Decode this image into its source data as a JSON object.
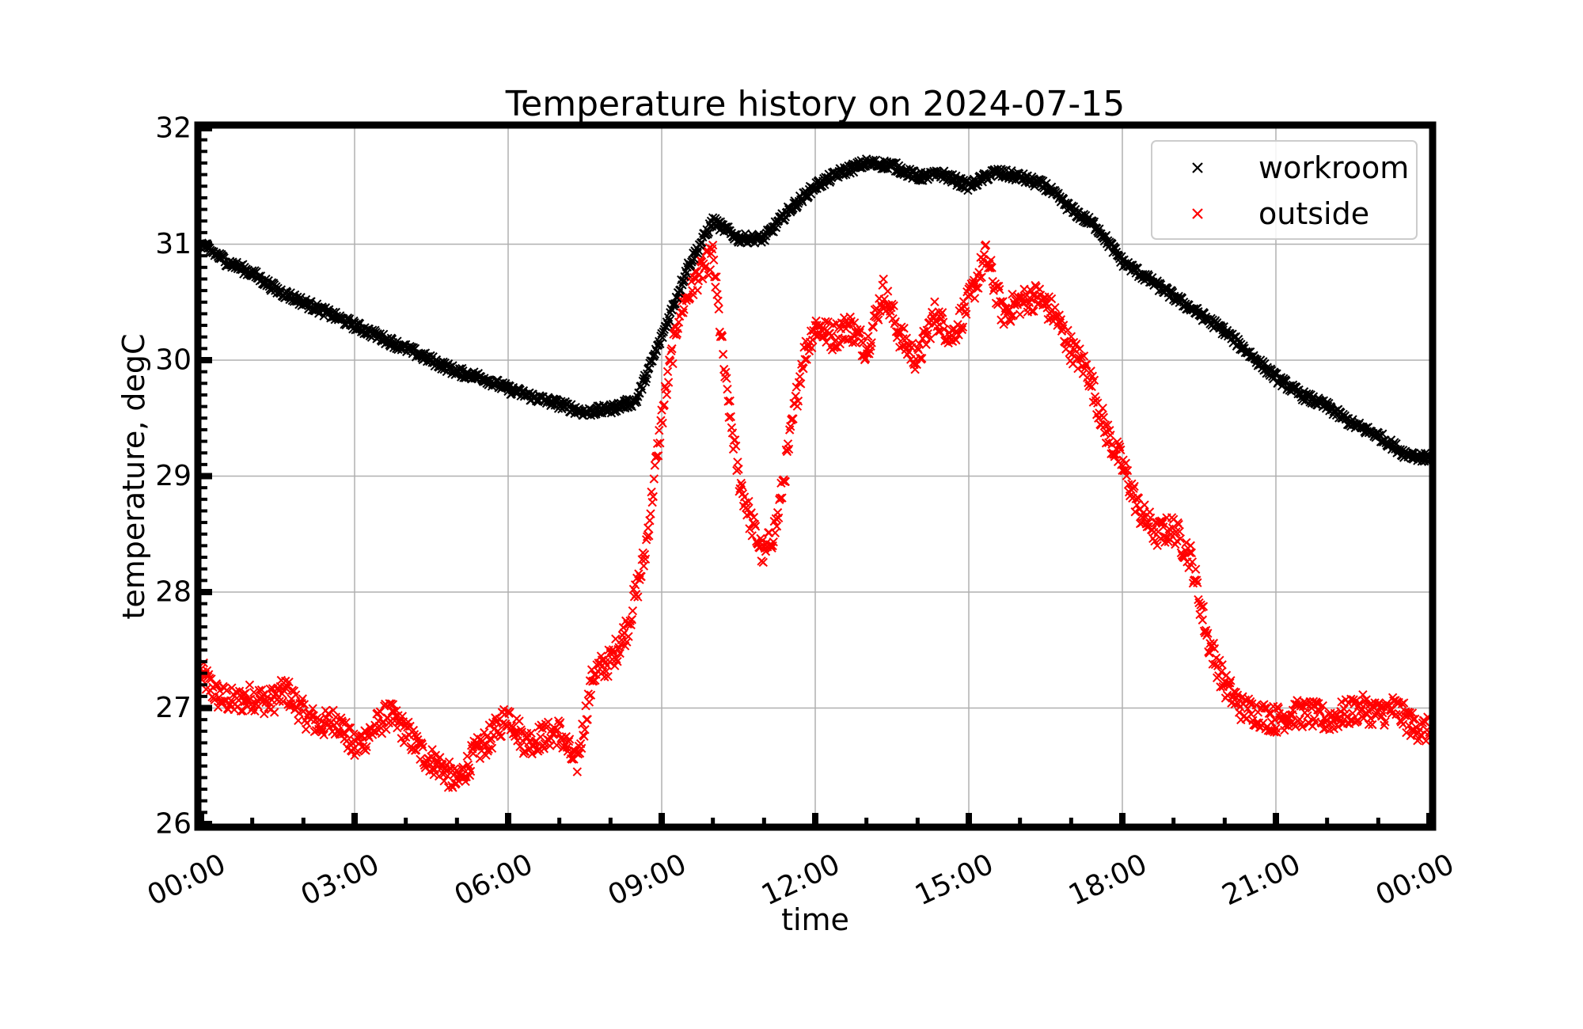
{
  "chart_data": {
    "type": "scatter",
    "title": "Temperature history on 2024-07-15",
    "xlabel": "time",
    "ylabel": "temperature, degC",
    "xlim": [
      "00:00",
      "24:00"
    ],
    "ylim": [
      26,
      32
    ],
    "x_tick_labels": [
      "00:00",
      "03:00",
      "06:00",
      "09:00",
      "12:00",
      "15:00",
      "18:00",
      "21:00",
      "00:00"
    ],
    "y_tick_labels": [
      "26",
      "27",
      "28",
      "29",
      "30",
      "31",
      "32"
    ],
    "grid": true,
    "legend_position": "top-right",
    "marker": "x",
    "series": [
      {
        "name": "workroom",
        "color": "#000000",
        "x": [
          "00:00",
          "00:30",
          "01:00",
          "01:30",
          "02:00",
          "02:30",
          "03:00",
          "03:30",
          "04:00",
          "04:30",
          "05:00",
          "05:30",
          "06:00",
          "06:30",
          "07:00",
          "07:30",
          "08:00",
          "08:30",
          "09:00",
          "09:30",
          "10:00",
          "10:30",
          "11:00",
          "11:30",
          "12:00",
          "12:30",
          "13:00",
          "13:30",
          "14:00",
          "14:30",
          "15:00",
          "15:30",
          "16:00",
          "16:30",
          "17:00",
          "17:30",
          "18:00",
          "18:30",
          "19:00",
          "19:30",
          "20:00",
          "20:30",
          "21:00",
          "21:30",
          "22:00",
          "22:30",
          "23:00",
          "23:30",
          "24:00"
        ],
        "y": [
          31.0,
          30.85,
          30.75,
          30.6,
          30.5,
          30.4,
          30.3,
          30.2,
          30.1,
          30.0,
          29.9,
          29.85,
          29.75,
          29.68,
          29.62,
          29.55,
          29.58,
          29.65,
          30.2,
          30.8,
          31.2,
          31.05,
          31.05,
          31.3,
          31.5,
          31.62,
          31.7,
          31.68,
          31.58,
          31.6,
          31.5,
          31.62,
          31.58,
          31.5,
          31.3,
          31.15,
          30.85,
          30.7,
          30.55,
          30.4,
          30.25,
          30.05,
          29.85,
          29.7,
          29.6,
          29.45,
          29.35,
          29.2,
          29.15
        ]
      },
      {
        "name": "outside",
        "color": "#ff0000",
        "x": [
          "00:00",
          "00:20",
          "00:40",
          "01:00",
          "01:20",
          "01:40",
          "02:00",
          "02:20",
          "02:40",
          "03:00",
          "03:20",
          "03:40",
          "04:00",
          "04:20",
          "04:40",
          "05:00",
          "05:20",
          "05:40",
          "06:00",
          "06:20",
          "06:40",
          "07:00",
          "07:20",
          "07:40",
          "08:00",
          "08:20",
          "08:40",
          "09:00",
          "09:20",
          "09:40",
          "10:00",
          "10:15",
          "10:30",
          "10:45",
          "11:00",
          "11:15",
          "11:30",
          "11:45",
          "12:00",
          "12:20",
          "12:40",
          "13:00",
          "13:20",
          "13:40",
          "14:00",
          "14:20",
          "14:40",
          "15:00",
          "15:20",
          "15:40",
          "16:00",
          "16:20",
          "16:40",
          "17:00",
          "17:20",
          "17:40",
          "18:00",
          "18:20",
          "18:40",
          "19:00",
          "19:20",
          "19:40",
          "20:00",
          "20:20",
          "20:40",
          "21:00",
          "21:20",
          "21:40",
          "22:00",
          "22:20",
          "22:40",
          "23:00",
          "23:20",
          "23:40",
          "24:00"
        ],
        "y": [
          27.3,
          27.1,
          27.05,
          27.1,
          27.05,
          27.15,
          26.95,
          26.85,
          26.9,
          26.65,
          26.8,
          26.95,
          26.8,
          26.6,
          26.5,
          26.35,
          26.6,
          26.75,
          26.95,
          26.7,
          26.75,
          26.8,
          26.5,
          27.3,
          27.4,
          27.7,
          28.3,
          29.5,
          30.4,
          30.7,
          30.9,
          29.8,
          29.0,
          28.6,
          28.3,
          28.6,
          29.3,
          30.0,
          30.3,
          30.2,
          30.3,
          30.1,
          30.6,
          30.2,
          30.0,
          30.4,
          30.2,
          30.5,
          30.9,
          30.4,
          30.5,
          30.55,
          30.4,
          30.1,
          29.9,
          29.4,
          29.1,
          28.7,
          28.5,
          28.55,
          28.3,
          27.6,
          27.2,
          27.0,
          26.95,
          26.9,
          26.95,
          26.95,
          26.9,
          26.95,
          27.0,
          26.95,
          27.0,
          26.85,
          26.8
        ]
      }
    ]
  }
}
